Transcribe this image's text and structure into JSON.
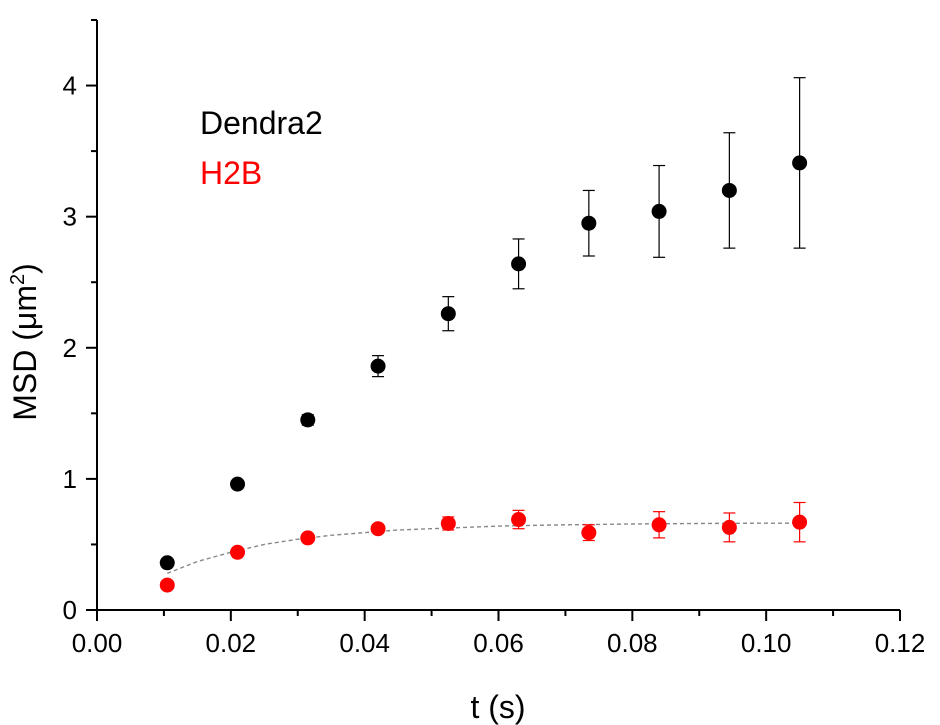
{
  "chart_data": {
    "type": "scatter",
    "xlabel": "t (s)",
    "ylabel": {
      "main": "MSD (",
      "unit": "μm",
      "sup": "2",
      "close": ")"
    },
    "xlim": [
      0.0,
      0.12
    ],
    "ylim": [
      0,
      4.5
    ],
    "x_ticks": [
      "0.00",
      "0.02",
      "0.04",
      "0.06",
      "0.08",
      "0.10",
      "0.12"
    ],
    "y_ticks": [
      "0",
      "1",
      "2",
      "3",
      "4"
    ],
    "grid": false,
    "legend_position": "top-left",
    "series": [
      {
        "name": "Dendra2",
        "color": "#000000",
        "x": [
          0.0105,
          0.021,
          0.0315,
          0.042,
          0.0525,
          0.063,
          0.0735,
          0.084,
          0.0945,
          0.105
        ],
        "y": [
          0.36,
          0.96,
          1.45,
          1.86,
          2.26,
          2.64,
          2.95,
          3.04,
          3.2,
          3.41
        ],
        "err": [
          0.02,
          0.02,
          0.04,
          0.08,
          0.13,
          0.19,
          0.25,
          0.35,
          0.44,
          0.65
        ]
      },
      {
        "name": "H2B",
        "color": "#ff0000",
        "x": [
          0.0105,
          0.021,
          0.0315,
          0.042,
          0.0525,
          0.063,
          0.0735,
          0.084,
          0.0945,
          0.105
        ],
        "y": [
          0.19,
          0.44,
          0.55,
          0.62,
          0.66,
          0.69,
          0.59,
          0.65,
          0.63,
          0.67
        ],
        "err": [
          0.02,
          0.02,
          0.02,
          0.03,
          0.05,
          0.07,
          0.06,
          0.1,
          0.11,
          0.15
        ]
      }
    ],
    "fit": {
      "color": "#888888",
      "x": [
        0.0105,
        0.015,
        0.02,
        0.025,
        0.03,
        0.035,
        0.04,
        0.045,
        0.05,
        0.055,
        0.06,
        0.065,
        0.07,
        0.075,
        0.08,
        0.085,
        0.09,
        0.095,
        0.1,
        0.105
      ],
      "y": [
        0.28,
        0.37,
        0.44,
        0.5,
        0.54,
        0.57,
        0.59,
        0.61,
        0.62,
        0.63,
        0.64,
        0.645,
        0.65,
        0.653,
        0.656,
        0.658,
        0.66,
        0.661,
        0.662,
        0.663
      ]
    }
  }
}
